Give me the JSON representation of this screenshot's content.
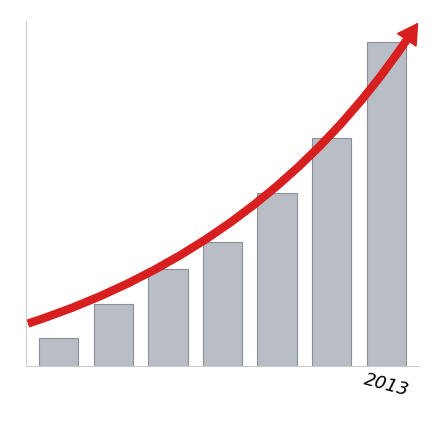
{
  "chart_data": {
    "type": "bar",
    "categories": [
      null,
      null,
      null,
      null,
      null,
      null,
      "2013"
    ],
    "values": [
      20,
      45,
      70,
      90,
      125,
      165,
      235
    ],
    "color": "#b9bdc5",
    "ylim": [
      0,
      250
    ],
    "tick_labels": "x"
  }
}
